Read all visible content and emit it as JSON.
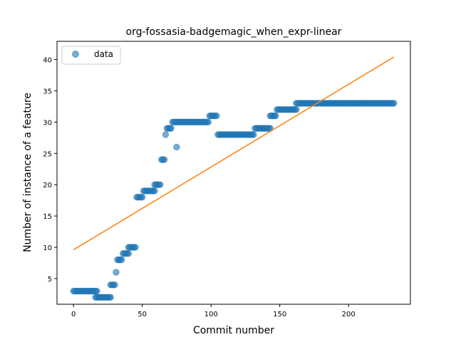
{
  "chart_data": {
    "type": "scatter",
    "title": "org-fossasia-badgemagic_when_expr-linear",
    "xlabel": "Commit number",
    "ylabel": "Number of instance of a feature",
    "xlim": [
      -12,
      245
    ],
    "ylim": [
      0.9,
      42.9
    ],
    "xticks": [
      0,
      50,
      100,
      150,
      200
    ],
    "yticks": [
      5,
      10,
      15,
      20,
      25,
      30,
      35,
      40
    ],
    "grid": false,
    "legend": {
      "placement": "top-left",
      "entries": [
        "data"
      ]
    },
    "colors": {
      "data": "#1f77b4",
      "fit": "#ff7f0e"
    },
    "series": [
      {
        "name": "data",
        "kind": "scatter",
        "segments": [
          {
            "from": 0,
            "to": 17,
            "y": 3
          },
          {
            "from": 16,
            "to": 27,
            "y": 2
          },
          {
            "from": 27,
            "to": 30,
            "y": 4
          },
          {
            "from": 31,
            "to": 31,
            "y": 6
          },
          {
            "from": 32,
            "to": 35,
            "y": 8
          },
          {
            "from": 36,
            "to": 40,
            "y": 9
          },
          {
            "from": 40,
            "to": 45,
            "y": 10
          },
          {
            "from": 46,
            "to": 50,
            "y": 18
          },
          {
            "from": 51,
            "to": 59,
            "y": 19
          },
          {
            "from": 59,
            "to": 63,
            "y": 20
          },
          {
            "from": 64,
            "to": 66,
            "y": 24
          },
          {
            "from": 67,
            "to": 67,
            "y": 28
          },
          {
            "from": 68,
            "to": 71,
            "y": 29
          },
          {
            "from": 72,
            "to": 76,
            "y": 30
          },
          {
            "from": 75,
            "to": 75,
            "y": 26
          },
          {
            "from": 77,
            "to": 98,
            "y": 30
          },
          {
            "from": 99,
            "to": 104,
            "y": 31
          },
          {
            "from": 105,
            "to": 131,
            "y": 28
          },
          {
            "from": 132,
            "to": 143,
            "y": 29
          },
          {
            "from": 143,
            "to": 147,
            "y": 31
          },
          {
            "from": 148,
            "to": 162,
            "y": 32
          },
          {
            "from": 162,
            "to": 233,
            "y": 33
          }
        ]
      },
      {
        "name": "",
        "kind": "line",
        "x": [
          0,
          233
        ],
        "y": [
          9.6,
          40.4
        ]
      }
    ]
  }
}
